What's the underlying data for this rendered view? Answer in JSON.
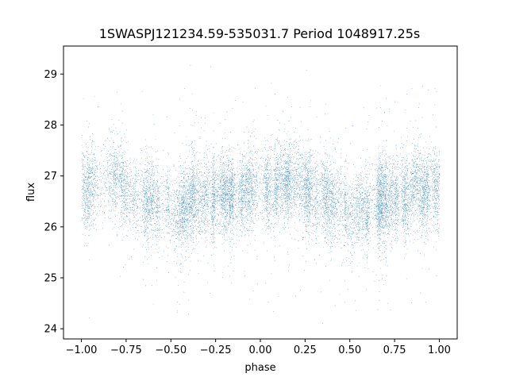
{
  "chart_data": {
    "type": "scatter",
    "title": "1SWASPJ121234.59-535031.7 Period 1048917.25s",
    "xlabel": "phase",
    "ylabel": "flux",
    "xlim": [
      -1.1,
      1.1
    ],
    "ylim": [
      23.8,
      29.55
    ],
    "xticks": [
      -1.0,
      -0.75,
      -0.5,
      -0.25,
      0.0,
      0.25,
      0.5,
      0.75,
      1.0
    ],
    "xtick_labels": [
      "−1.00",
      "−0.75",
      "−0.50",
      "−0.25",
      "0.00",
      "0.25",
      "0.50",
      "0.75",
      "1.00"
    ],
    "yticks": [
      24,
      25,
      26,
      27,
      28,
      29
    ],
    "ytick_labels": [
      "24",
      "25",
      "26",
      "27",
      "28",
      "29"
    ],
    "grid": false,
    "marker_color": "#1f77b4",
    "series": [
      {
        "x_range": [
          -1.0,
          1.0
        ],
        "mean_flux_profile": {
          "phase": [
            -1.0,
            -0.9,
            -0.8,
            -0.7,
            -0.6,
            -0.5,
            -0.4,
            -0.3,
            -0.2,
            -0.1,
            0.0,
            0.1,
            0.2,
            0.3,
            0.4,
            0.5,
            0.6,
            0.7,
            0.8,
            0.9,
            1.0
          ],
          "flux": [
            26.75,
            26.8,
            26.85,
            26.6,
            26.5,
            26.3,
            26.45,
            26.55,
            26.65,
            26.7,
            26.75,
            26.8,
            26.85,
            26.6,
            26.5,
            26.3,
            26.45,
            26.55,
            26.65,
            26.7,
            26.75
          ]
        },
        "flux_scatter_sigma": 0.38,
        "flux_min": 24.0,
        "flux_max": 29.2,
        "point_count": 14000
      }
    ]
  }
}
